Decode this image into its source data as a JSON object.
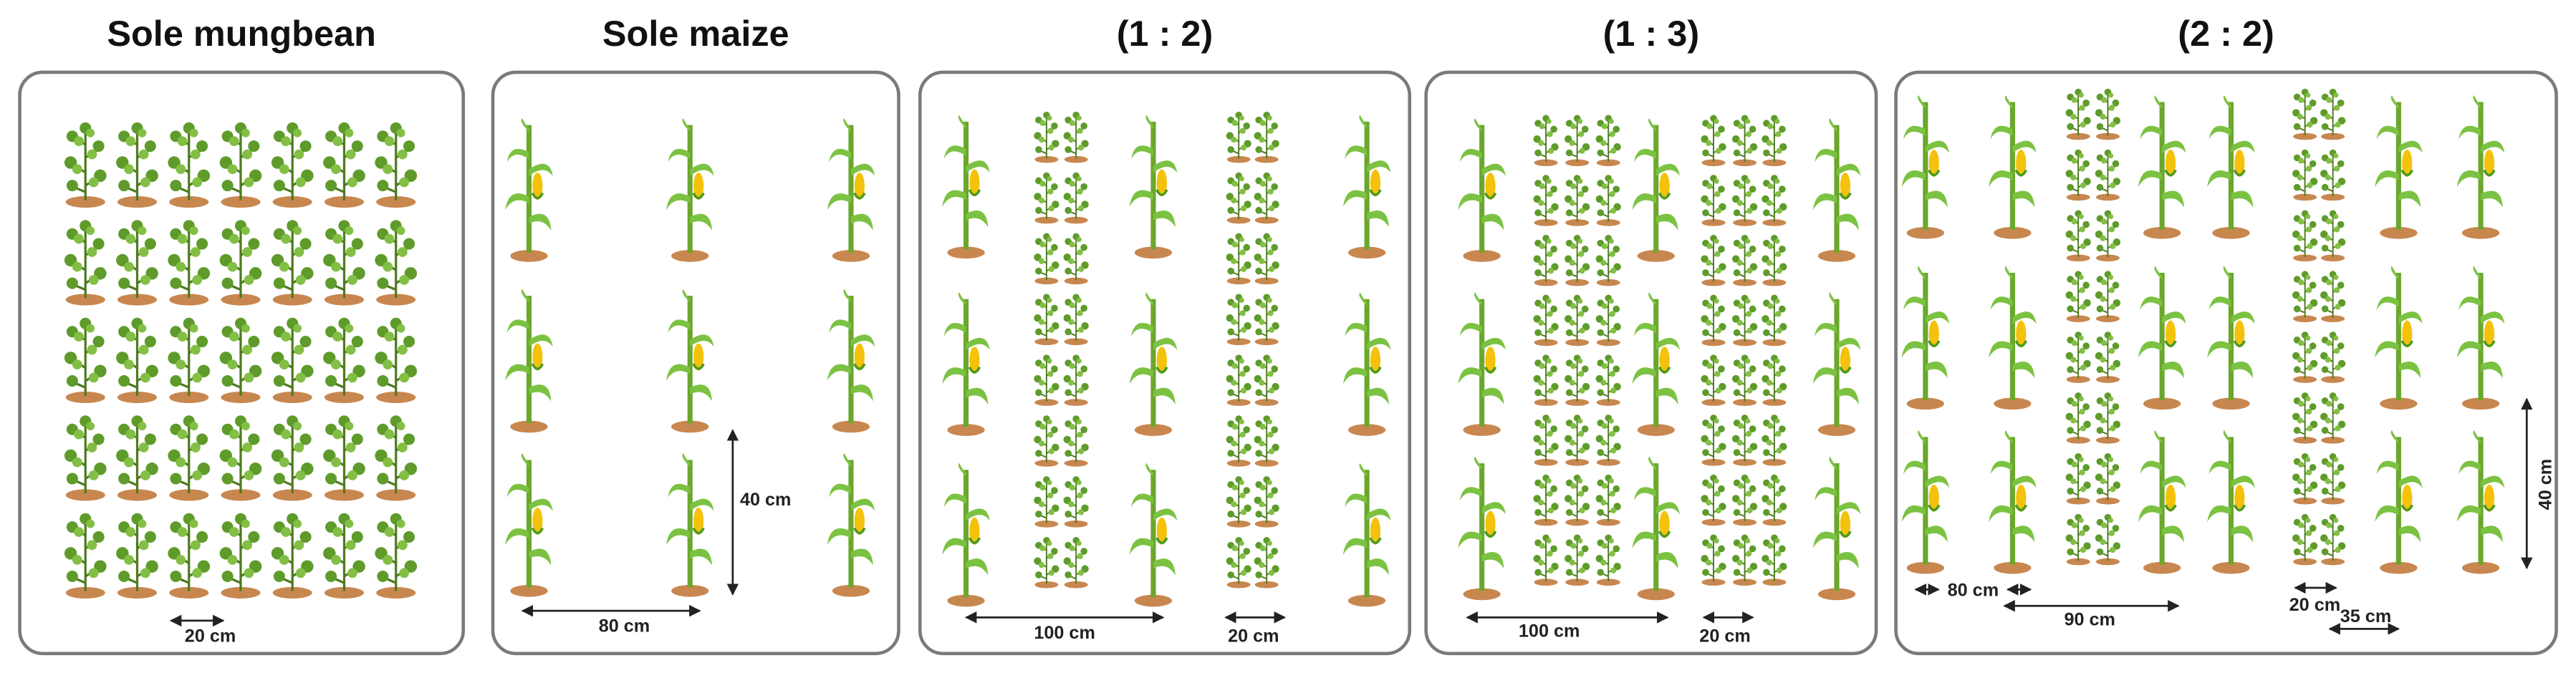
{
  "panels": [
    {
      "title": "Sole mungbean",
      "labels": [
        "20 cm"
      ]
    },
    {
      "title": "Sole maize",
      "labels": [
        "40 cm",
        "80 cm"
      ]
    },
    {
      "title": "(1 : 2)",
      "labels": [
        "100 cm",
        "20 cm"
      ]
    },
    {
      "title": "(1 : 3)",
      "labels": [
        "100 cm",
        "20 cm"
      ]
    },
    {
      "title": "(2 : 2)",
      "labels": [
        "80 cm",
        "90 cm",
        "20 cm",
        "35 cm",
        "40 cm"
      ]
    }
  ]
}
